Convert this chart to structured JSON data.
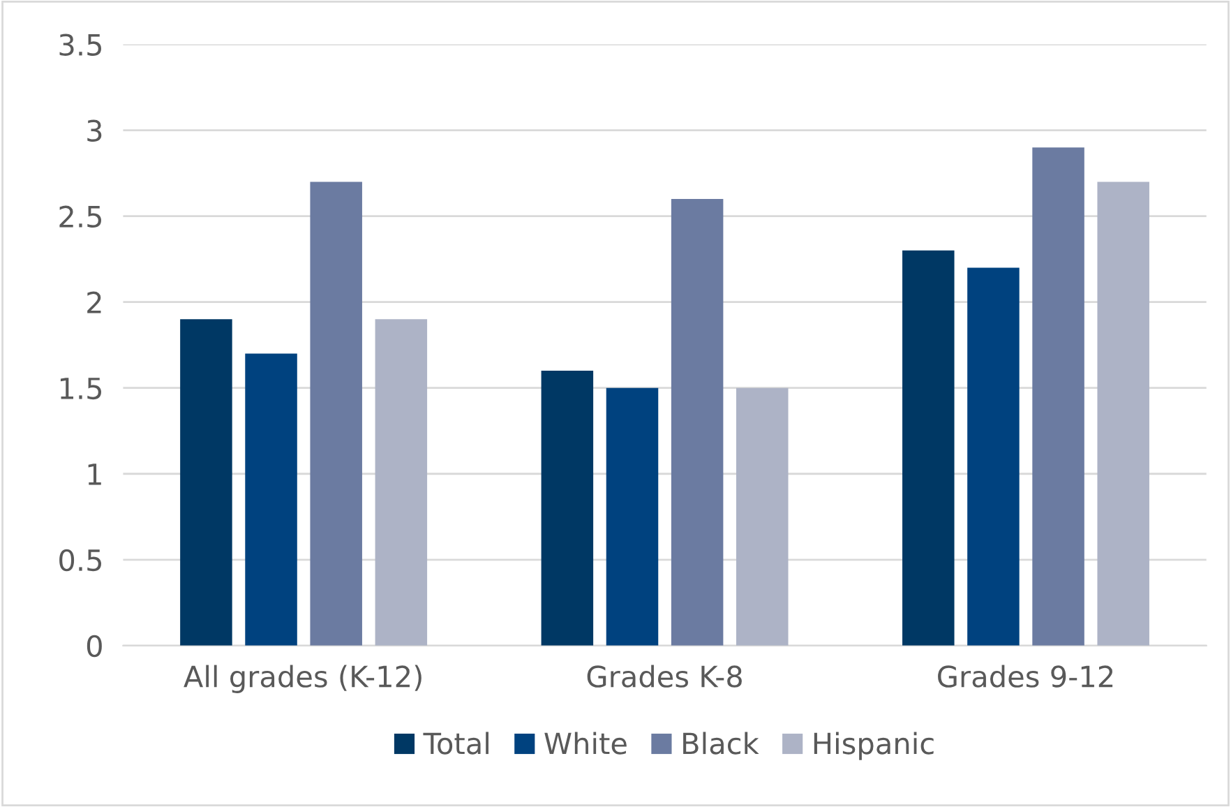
{
  "chart_data": {
    "type": "bar",
    "categories": [
      "All grades (K-12)",
      "Grades K-8",
      "Grades 9-12"
    ],
    "series": [
      {
        "name": "Total",
        "color": "#003864",
        "values": [
          1.9,
          1.6,
          2.3
        ]
      },
      {
        "name": "White",
        "color": "#00427f",
        "values": [
          1.7,
          1.5,
          2.2
        ]
      },
      {
        "name": "Black",
        "color": "#6b7ba1",
        "values": [
          2.7,
          2.6,
          2.9
        ]
      },
      {
        "name": "Hispanic",
        "color": "#adb3c6",
        "values": [
          1.9,
          1.5,
          2.7
        ]
      }
    ],
    "ylim": [
      0,
      3.5
    ],
    "yticks": [
      0,
      0.5,
      1,
      1.5,
      2,
      2.5,
      3,
      3.5
    ],
    "grid": "y",
    "legend": "bottom"
  }
}
